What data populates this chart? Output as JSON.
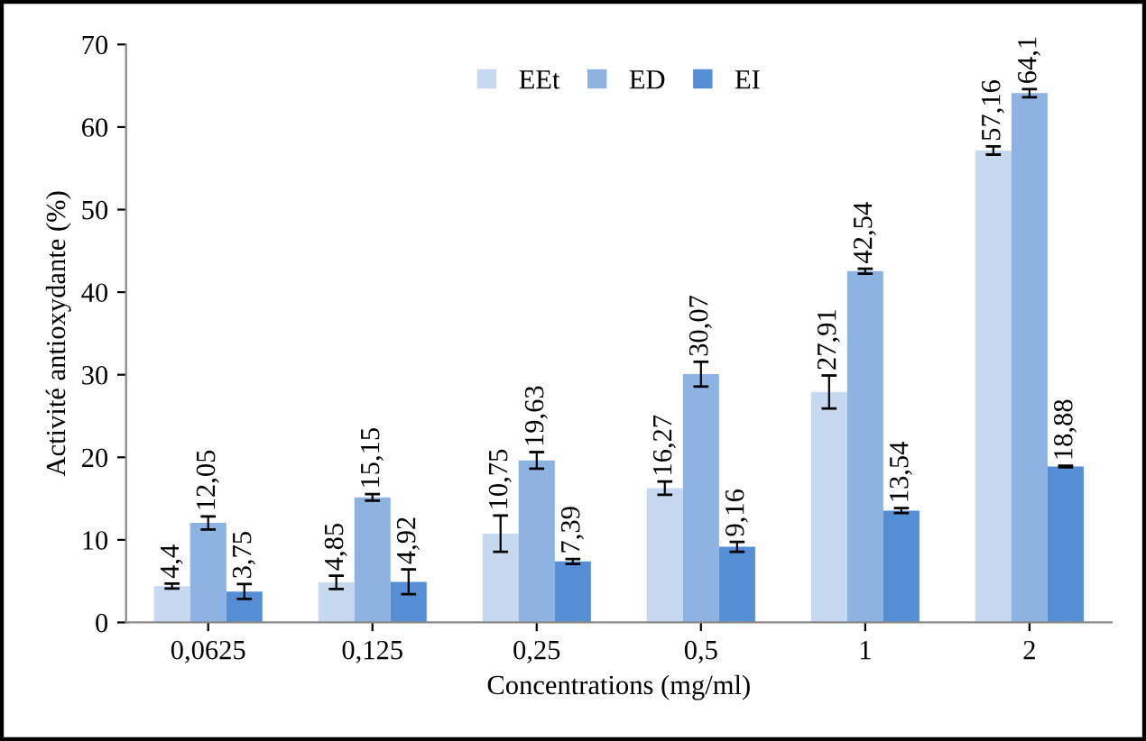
{
  "chart_data": {
    "type": "bar",
    "xlabel": "Concentrations (mg/ml)",
    "ylabel": "Activité antioxydante (%)",
    "categories": [
      "0,0625",
      "0,125",
      "0,25",
      "0,5",
      "1",
      "2"
    ],
    "series": [
      {
        "name": "EEt",
        "color": "#c6d9f1",
        "values": [
          4.4,
          4.85,
          10.75,
          16.27,
          27.91,
          57.16
        ],
        "errors": [
          0.3,
          0.8,
          2.2,
          0.8,
          2.0,
          0.5
        ],
        "value_labels": [
          "4,4",
          "4,85",
          "10,75",
          "16,27",
          "27,91",
          "57,16"
        ]
      },
      {
        "name": "ED",
        "color": "#8db3e2",
        "values": [
          12.05,
          15.15,
          19.63,
          30.07,
          42.54,
          64.1
        ],
        "errors": [
          0.8,
          0.4,
          1.0,
          1.5,
          0.3,
          0.5
        ],
        "value_labels": [
          "12,05",
          "15,15",
          "19,63",
          "30,07",
          "42,54",
          "64,1"
        ]
      },
      {
        "name": "EI",
        "color": "#558ed5",
        "values": [
          3.75,
          4.92,
          7.39,
          9.16,
          13.54,
          18.88
        ],
        "errors": [
          0.9,
          1.5,
          0.3,
          0.6,
          0.3,
          0.1
        ],
        "value_labels": [
          "3,75",
          "4,92",
          "7,39",
          "9,16",
          "13,54",
          "18,88"
        ]
      }
    ],
    "ylim": [
      0,
      70
    ],
    "yticks": [
      0,
      10,
      20,
      30,
      40,
      50,
      60,
      70
    ],
    "grid": false,
    "legend": "top"
  }
}
